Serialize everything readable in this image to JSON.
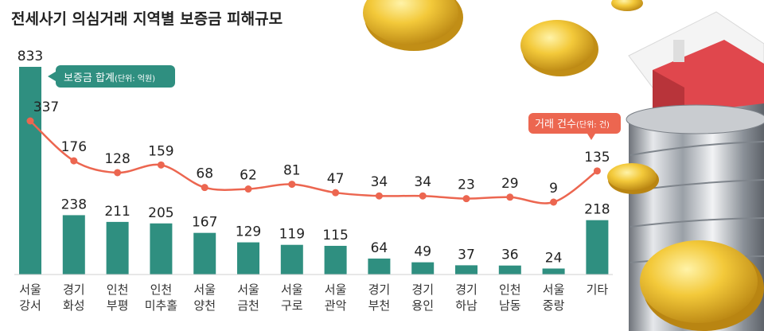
{
  "chart_data": {
    "type": "bar+line",
    "title": "전세사기 의심거래 지역별 보증금 피해규모",
    "categories": [
      [
        "서울",
        "강서"
      ],
      [
        "경기",
        "화성"
      ],
      [
        "인천",
        "부평"
      ],
      [
        "인천",
        "미추홀"
      ],
      [
        "서울",
        "양천"
      ],
      [
        "서울",
        "금천"
      ],
      [
        "서울",
        "구로"
      ],
      [
        "서울",
        "관악"
      ],
      [
        "경기",
        "부천"
      ],
      [
        "경기",
        "용인"
      ],
      [
        "경기",
        "하남"
      ],
      [
        "인천",
        "남동"
      ],
      [
        "서울",
        "중랑"
      ],
      [
        "기타"
      ]
    ],
    "series": [
      {
        "name": "보증금 합계",
        "unit": "(단위: 억원)",
        "type": "bar",
        "values": [
          833,
          238,
          211,
          205,
          167,
          129,
          119,
          115,
          64,
          49,
          37,
          36,
          24,
          218
        ]
      },
      {
        "name": "거래 건수",
        "unit": "(단위: 건)",
        "type": "line",
        "values": [
          337,
          176,
          128,
          159,
          68,
          62,
          81,
          47,
          34,
          34,
          23,
          29,
          9,
          135
        ]
      }
    ],
    "colors": {
      "bar": "#2f8f80",
      "line": "#ec6650",
      "baseline": "#cccccc"
    }
  }
}
